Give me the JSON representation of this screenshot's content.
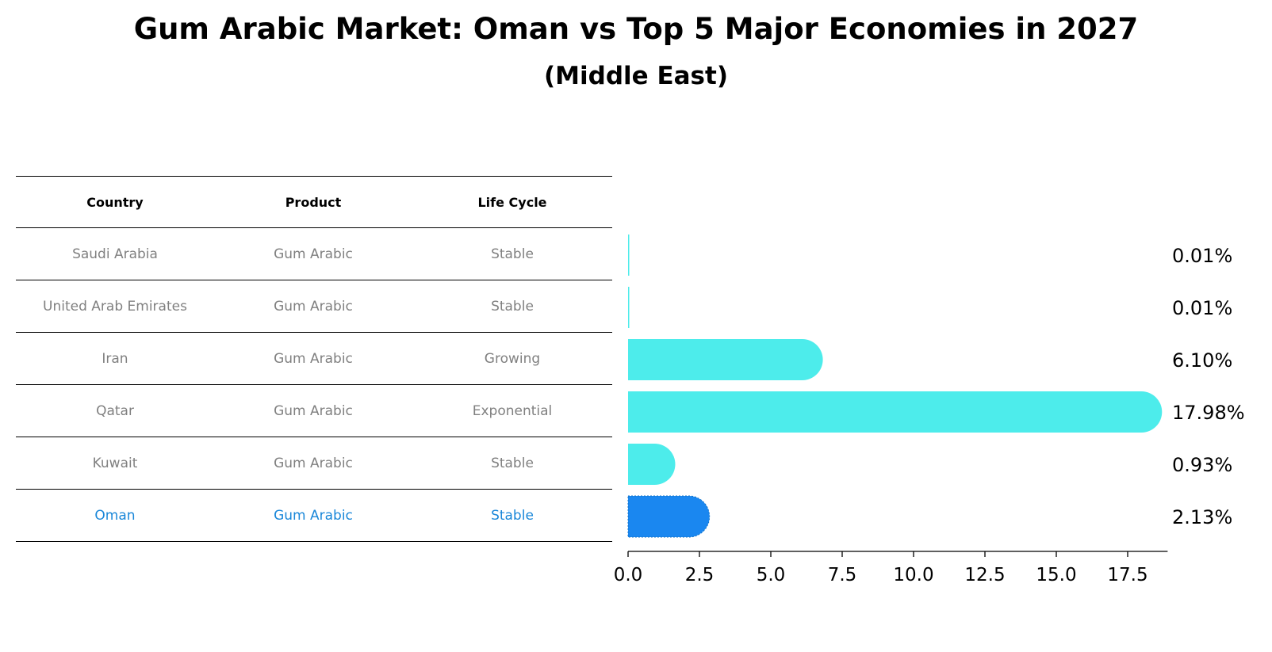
{
  "title": "Gum Arabic Market: Oman vs Top 5 Major Economies in 2027",
  "subtitle": "(Middle East)",
  "table": {
    "headers": [
      "Country",
      "Product",
      "Life Cycle"
    ],
    "rows": [
      [
        "Saudi Arabia",
        "Gum Arabic",
        "Stable"
      ],
      [
        "United Arab Emirates",
        "Gum Arabic",
        "Stable"
      ],
      [
        "Iran",
        "Gum Arabic",
        "Growing"
      ],
      [
        "Qatar",
        "Gum Arabic",
        "Exponential"
      ],
      [
        "Kuwait",
        "Gum Arabic",
        "Stable"
      ],
      [
        "Oman",
        "Gum Arabic",
        "Stable"
      ]
    ]
  },
  "colors": {
    "bar": "#4deceb",
    "highlight_bar": "#1a87f0",
    "highlight_text": "#1a87d9"
  },
  "chart_data": {
    "type": "bar",
    "orientation": "horizontal",
    "categories": [
      "Saudi Arabia",
      "United Arab Emirates",
      "Iran",
      "Qatar",
      "Kuwait",
      "Oman"
    ],
    "values": [
      0.01,
      0.01,
      6.1,
      17.98,
      0.93,
      2.13
    ],
    "value_labels": [
      "0.01%",
      "0.01%",
      "6.10%",
      "17.98%",
      "0.93%",
      "2.13%"
    ],
    "highlight": "Oman",
    "xlim": [
      0,
      18.9
    ],
    "xticks": [
      0,
      2.5,
      5,
      7.5,
      10,
      12.5,
      15,
      17.5
    ],
    "xtick_labels": [
      "0.0",
      "2.5",
      "5.0",
      "7.5",
      "10.0",
      "12.5",
      "15.0",
      "17.5"
    ],
    "grid": false
  }
}
